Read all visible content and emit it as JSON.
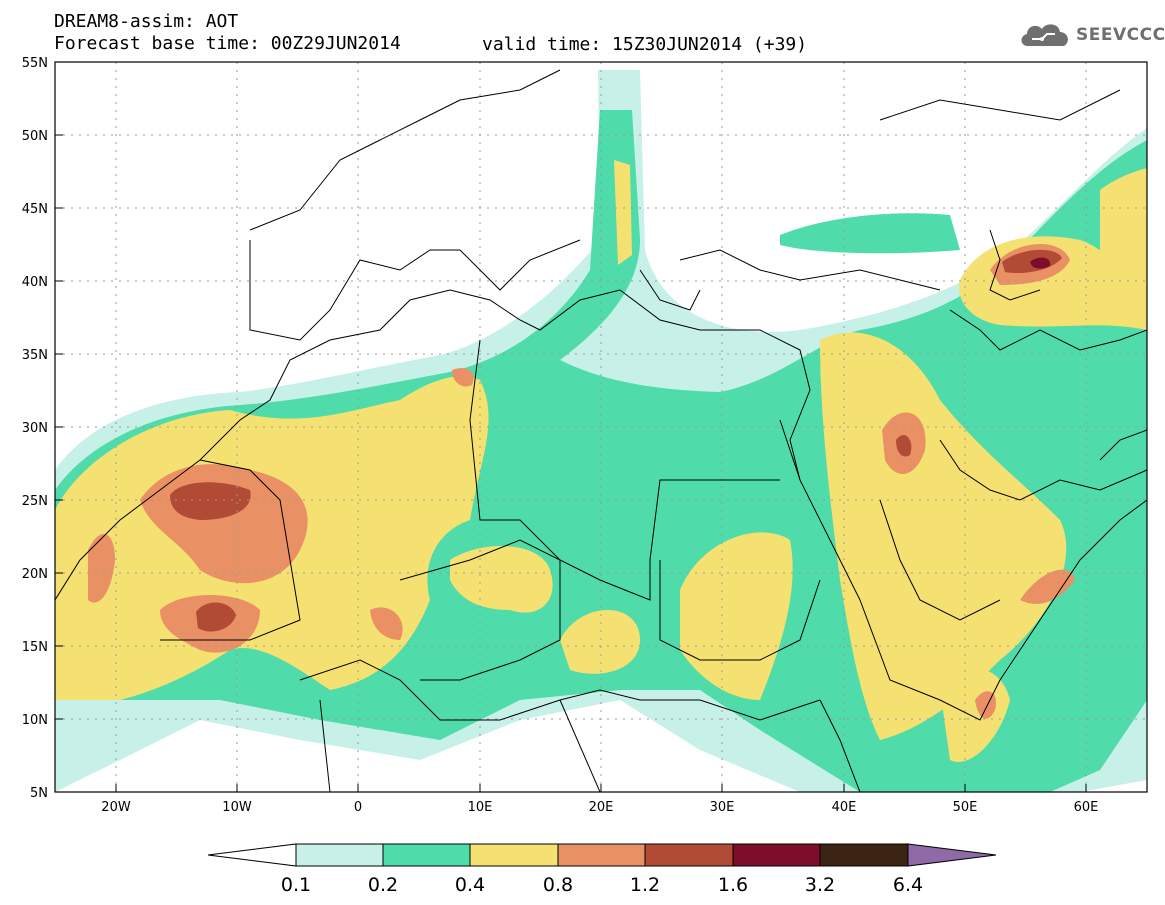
{
  "header": {
    "title": "DREAM8-assim: AOT",
    "base_time": "Forecast base time: 00Z29JUN2014",
    "valid_time": "valid time: 15Z30JUN2014 (+39)"
  },
  "logo": {
    "text": "SEEVCCC",
    "icon": "cloud-icon"
  },
  "map": {
    "projection": "lat-lon",
    "lat_ticks": [
      "55N",
      "50N",
      "45N",
      "40N",
      "35N",
      "30N",
      "25N",
      "20N",
      "15N",
      "10N",
      "5N"
    ],
    "lon_ticks": [
      "20W",
      "10W",
      "0",
      "10E",
      "20E",
      "30E",
      "40E",
      "50E",
      "60E"
    ],
    "lat_range": [
      5,
      55
    ],
    "lon_range": [
      -25,
      65
    ],
    "grid": "dotted"
  },
  "legend": {
    "labels": [
      "0.1",
      "0.2",
      "0.4",
      "0.8",
      "1.2",
      "1.6",
      "3.2",
      "6.4"
    ],
    "colors": [
      "#ffffff",
      "#c6f0e8",
      "#4fdbaa",
      "#f5e171",
      "#e99065",
      "#b14b36",
      "#7e0c2b",
      "#3b2414",
      "#8f6aa6"
    ]
  }
}
